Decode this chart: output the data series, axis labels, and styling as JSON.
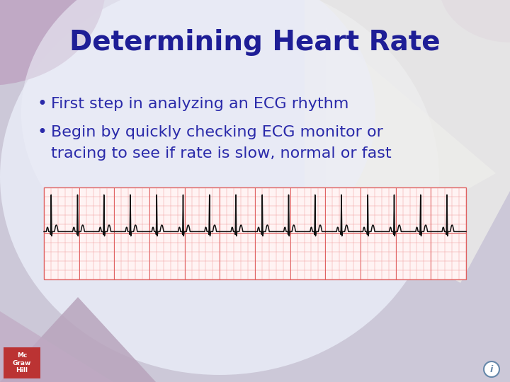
{
  "title": "Determining Heart Rate",
  "title_color": "#1e1e96",
  "title_fontsize": 28,
  "bullet1": "First step in analyzing an ECG rhythm",
  "bullet2_line1": "Begin by quickly checking ECG monitor or",
  "bullet2_line2": "tracing to see if rate is slow, normal or fast",
  "bullet_color": "#2a2aaa",
  "bullet_fontsize": 16,
  "bg_base": "#ccc8d8",
  "bg_light_center": "#e8eaf4",
  "bg_circle_color": "#dcdcec",
  "bg_mauve_tl": "#c8afc8",
  "bg_mauve_tr": "#c8b0c8",
  "bg_mauve_bl": "#b8a4bc",
  "bg_diamond": "#f0f0ec",
  "ecg_bg": "#fff3f3",
  "ecg_grid_minor": "#f0a0a0",
  "ecg_grid_major": "#e06060",
  "ecg_line_color": "#111111",
  "logo_bg": "#bb3333",
  "info_circle_color": "#6688aa"
}
